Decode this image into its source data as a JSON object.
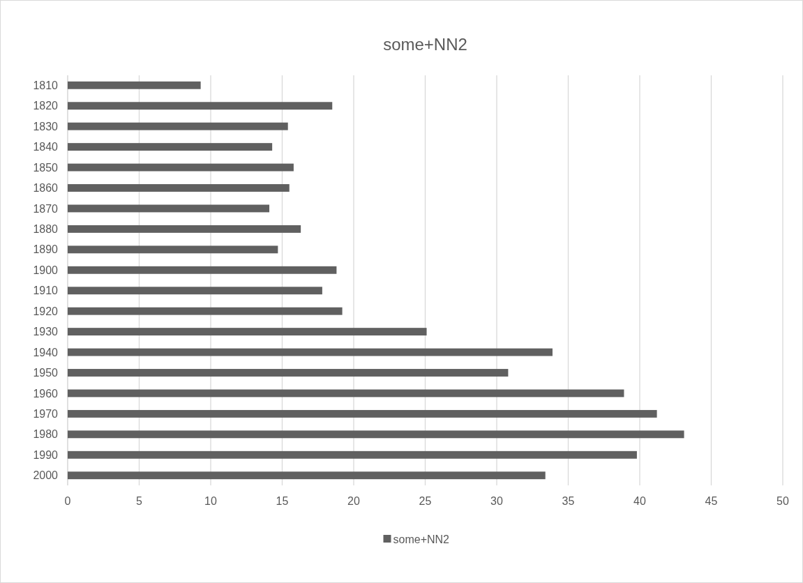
{
  "chart_data": {
    "type": "bar",
    "title": "some+NN2",
    "orientation": "horizontal",
    "categories": [
      "1810",
      "1820",
      "1830",
      "1840",
      "1850",
      "1860",
      "1870",
      "1880",
      "1890",
      "1900",
      "1910",
      "1920",
      "1930",
      "1940",
      "1950",
      "1960",
      "1970",
      "1980",
      "1990",
      "2000"
    ],
    "series": [
      {
        "name": "some+NN2",
        "color": "#606060",
        "values": [
          9.3,
          18.5,
          15.4,
          14.3,
          15.8,
          15.5,
          14.1,
          16.3,
          14.7,
          18.8,
          17.8,
          19.2,
          25.1,
          33.9,
          30.8,
          38.9,
          41.2,
          43.1,
          39.8,
          33.4
        ]
      }
    ],
    "xlim": [
      0,
      50
    ],
    "xticks": [
      0,
      5,
      10,
      15,
      20,
      25,
      30,
      35,
      40,
      45,
      50
    ],
    "grid": "x",
    "legend": "bottom"
  }
}
